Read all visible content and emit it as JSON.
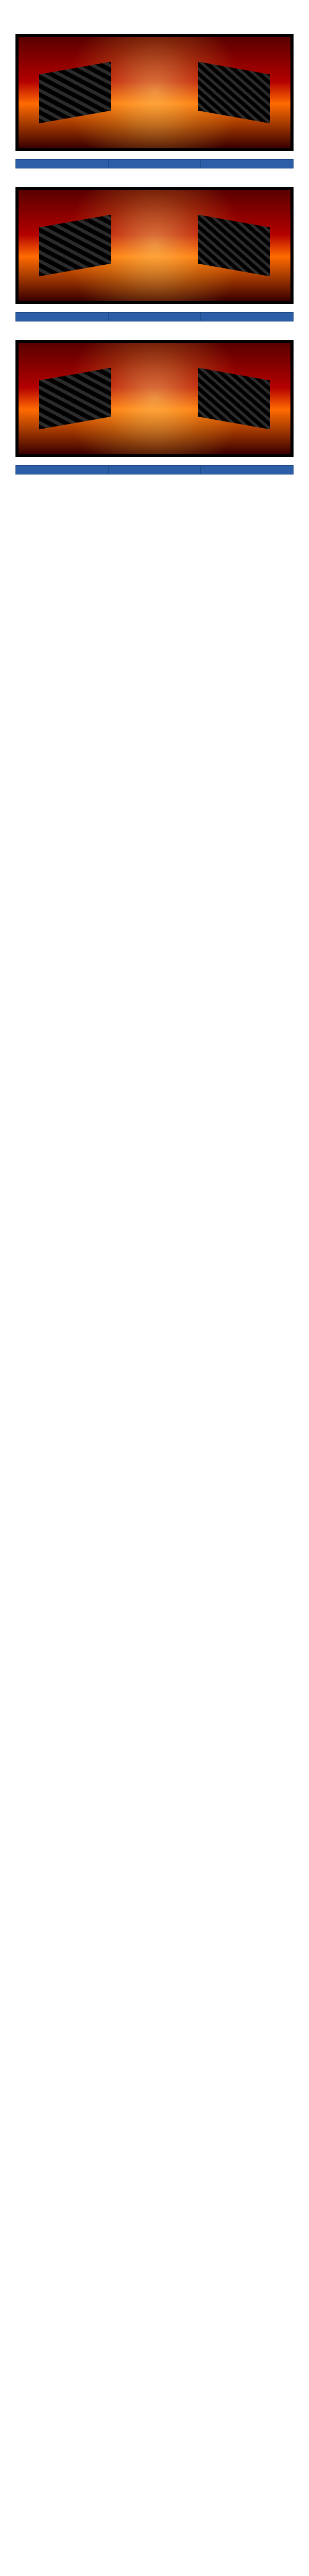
{
  "header": {
    "date": "",
    "place": "",
    "past_link": ""
  },
  "sections": [
    {
      "banner_char": "",
      "heading": "",
      "columns": {
        "num": "",
        "name": "",
        "diff": ""
      },
      "rows": [],
      "summary": []
    },
    {
      "banner_char": "",
      "heading": "",
      "columns": {
        "num": "",
        "name": "",
        "diff": ""
      },
      "rows": [],
      "summary": []
    },
    {
      "banner_char": "",
      "heading": "",
      "columns": {
        "num": "",
        "name": "",
        "diff": ""
      },
      "rows": [],
      "summary": []
    }
  ],
  "outro": ""
}
